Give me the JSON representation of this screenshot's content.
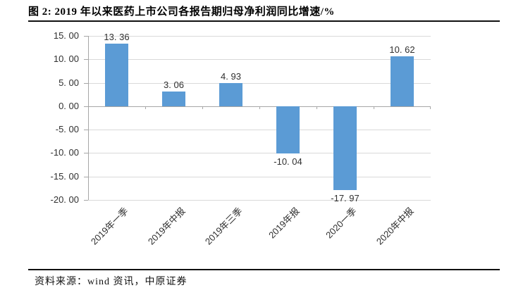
{
  "figure": {
    "title": "图 2: 2019 年以来医药上市公司各报告期归母净利润同比增速/%",
    "source_note": "资料来源：wind 资讯，中原证券"
  },
  "chart_data": {
    "type": "bar",
    "title": "2019 年以来医药上市公司各报告期归母净利润同比增速/%",
    "categories": [
      "2019年一季",
      "2019年中报",
      "2019年三季",
      "2019年报",
      "2020一季",
      "2020年中报"
    ],
    "values": [
      13.36,
      3.06,
      4.93,
      -10.04,
      -17.97,
      10.62
    ],
    "bar_labels": [
      "13. 36",
      "3. 06",
      "4. 93",
      "-10. 04",
      "-17. 97",
      "10. 62"
    ],
    "y_axis": {
      "ylim": [
        -20,
        15
      ],
      "tick_values": [
        15,
        10,
        5,
        0,
        -5,
        -10,
        -15,
        -20
      ],
      "tick_labels": [
        "15. 00",
        "10. 00",
        "5. 00",
        "0. 00",
        "-5. 00",
        "-10. 00",
        "-15. 00",
        "-20. 00"
      ]
    },
    "xlabel": "",
    "ylabel": "",
    "grid": true,
    "legend": "none",
    "x_label_rotation_deg": -45,
    "colors": {
      "bar": "#5B9BD5",
      "gridline": "#D9D9D9",
      "axis": "#A6A6A6",
      "label_text": "#303030",
      "rule": "#111111"
    }
  }
}
